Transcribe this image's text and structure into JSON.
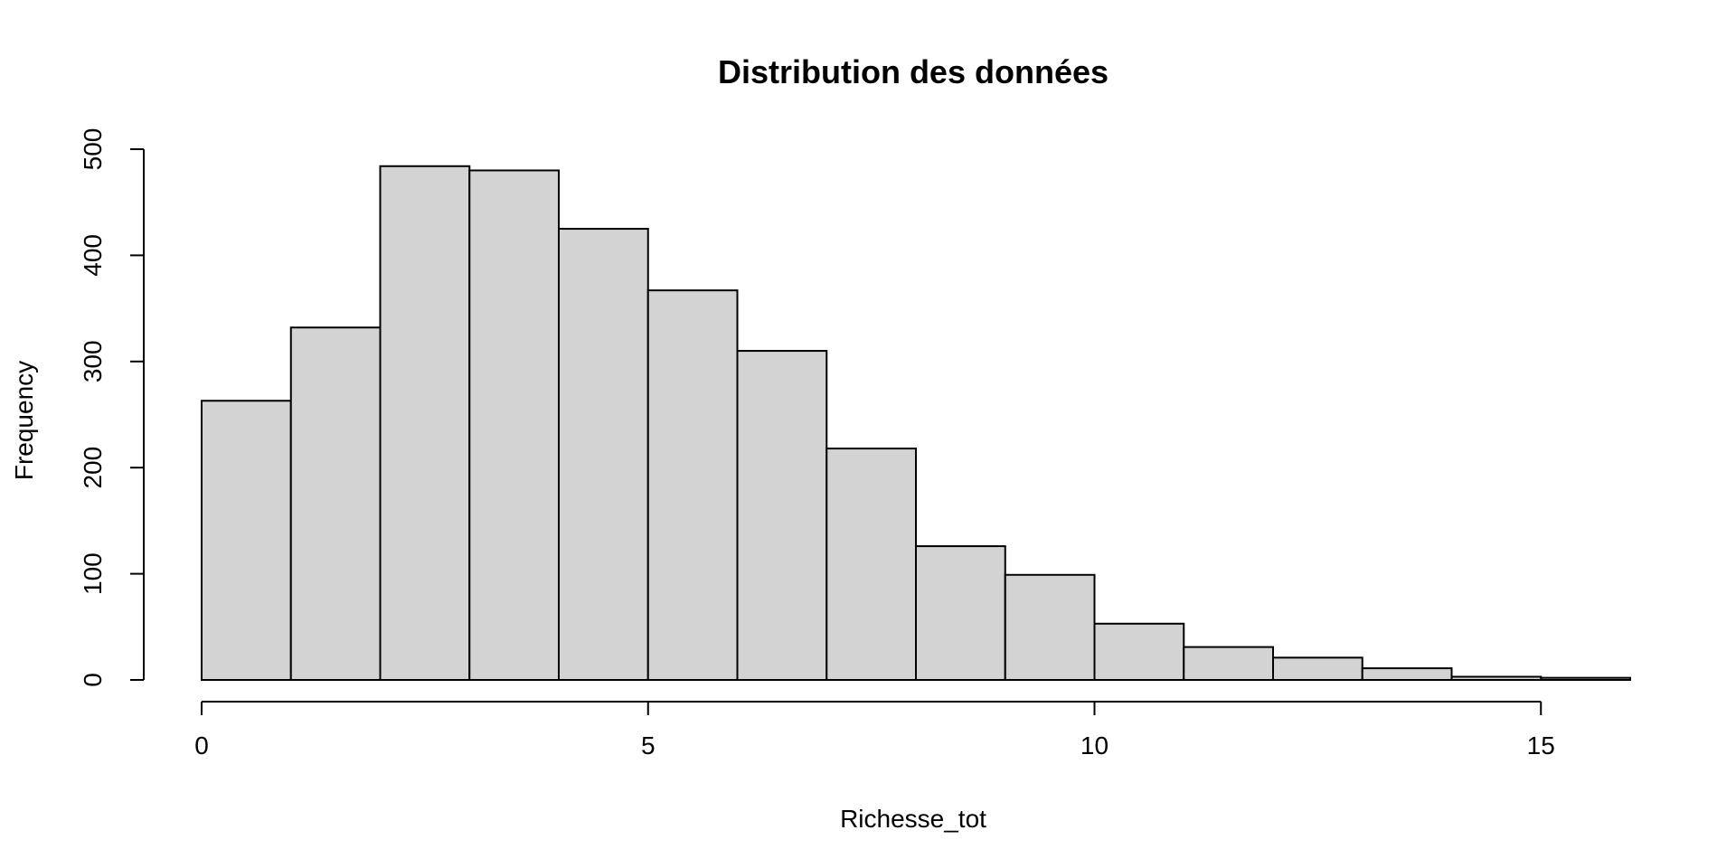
{
  "chart_data": {
    "type": "bar",
    "title": "Distribution des données",
    "xlabel": "Richesse_tot",
    "ylabel": "Frequency",
    "bin_edges": [
      0,
      1,
      2,
      3,
      4,
      5,
      6,
      7,
      8,
      9,
      10,
      11,
      12,
      13,
      14,
      15,
      16
    ],
    "values": [
      263,
      332,
      484,
      480,
      425,
      367,
      310,
      218,
      126,
      99,
      53,
      31,
      21,
      11,
      3,
      2
    ],
    "xlim": [
      0,
      16
    ],
    "ylim": [
      0,
      500
    ],
    "x_ticks": [
      0,
      5,
      10,
      15
    ],
    "y_ticks": [
      0,
      100,
      200,
      300,
      400,
      500
    ],
    "grid": false,
    "bar_color": "#d3d3d3",
    "edge_color": "#000000"
  }
}
